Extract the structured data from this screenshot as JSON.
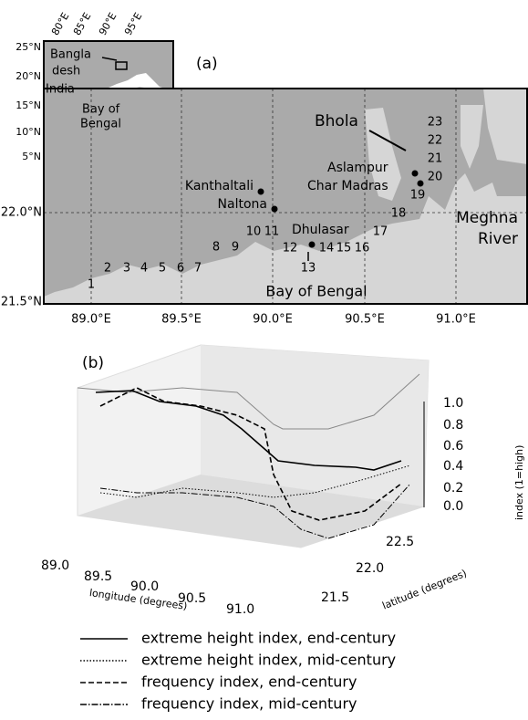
{
  "panel_a": {
    "label": "(a)",
    "inset": {
      "lon_ticks": [
        "80°E",
        "85°E",
        "90°E",
        "95°E"
      ],
      "lat_ticks": [
        "25°N",
        "20°N",
        "15°N",
        "10°N",
        "5°N"
      ],
      "labels": [
        "Bangla",
        "desh",
        "India",
        "Bay of",
        "Bengal"
      ]
    },
    "places": [
      "Bhola",
      "Aslampur",
      "Char Madras",
      "Kanthaltali",
      "Naltona",
      "Dhulasar",
      "Meghna",
      "River",
      "Bay of Bengal"
    ],
    "stations": [
      "1",
      "2",
      "3",
      "4",
      "5",
      "6",
      "7",
      "8",
      "9",
      "10",
      "11",
      "12",
      "13",
      "14",
      "15",
      "16",
      "17",
      "18",
      "19",
      "20",
      "21",
      "22",
      "23"
    ],
    "lon_ticks": [
      "89.0°E",
      "89.5°E",
      "90.0°E",
      "90.5°E",
      "91.0°E"
    ],
    "lat_ticks": [
      "22.0°N",
      "21.5°N"
    ]
  },
  "panel_b": {
    "label": "(b)",
    "x_ticks": [
      "89.0",
      "89.5",
      "90.0",
      "90.5",
      "91.0"
    ],
    "x_label": "longitude (degrees)",
    "y_ticks": [
      "21.5",
      "22.0",
      "22.5"
    ],
    "y_label": "latitude (degrees)",
    "z_ticks": [
      "0.0",
      "0.2",
      "0.4",
      "0.6",
      "0.8",
      "1.0"
    ],
    "z_label": "index (1=high)",
    "legend": [
      "extreme height index, end-century",
      "extreme height index, mid-century",
      "frequency index, end-century",
      "frequency index, mid-century"
    ]
  }
}
